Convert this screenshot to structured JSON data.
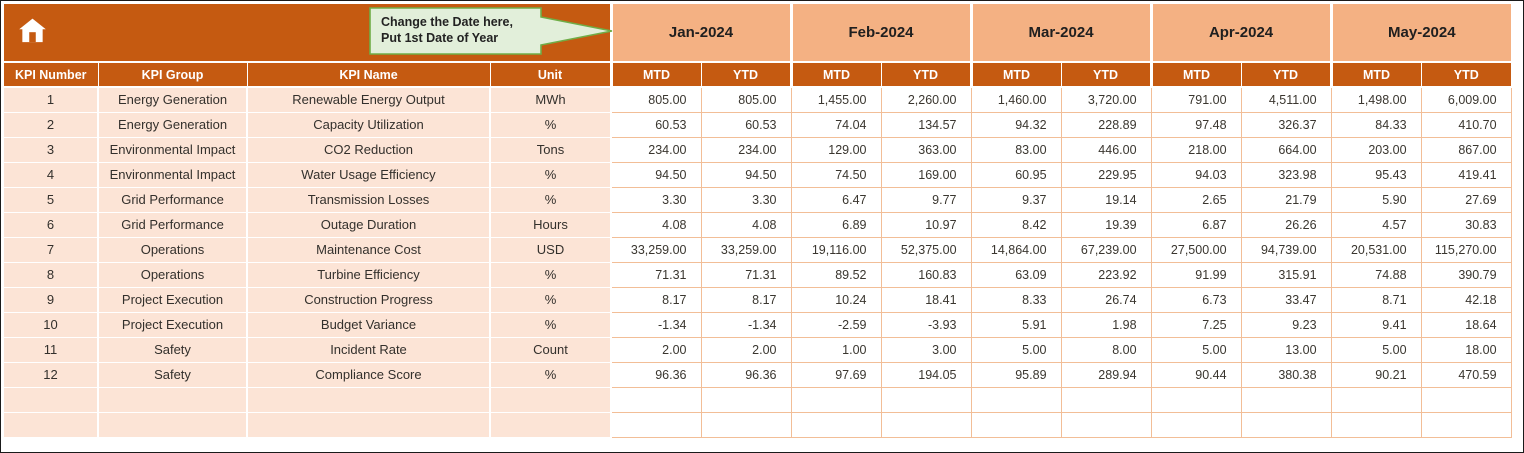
{
  "colors": {
    "header_fill": "#C55A11",
    "month_band_fill": "#F4B183",
    "left_block_fill": "#FCE4D6",
    "gridline": "#F2BE97",
    "callout_fill": "#E2EFDA",
    "callout_border": "#70AD47",
    "header_text": "#FFFFFF"
  },
  "callout": {
    "line1": "Change the Date here,",
    "line2": "Put 1st Date of Year"
  },
  "months": [
    "Jan-2024",
    "Feb-2024",
    "Mar-2024",
    "Apr-2024",
    "May-2024"
  ],
  "subheaders": {
    "mtd": "MTD",
    "ytd": "YTD"
  },
  "columns": [
    "KPI Number",
    "KPI Group",
    "KPI Name",
    "Unit"
  ],
  "rows": [
    {
      "num": "1",
      "group": "Energy Generation",
      "name": "Renewable Energy Output",
      "unit": "MWh",
      "values": [
        "805.00",
        "805.00",
        "1,455.00",
        "2,260.00",
        "1,460.00",
        "3,720.00",
        "791.00",
        "4,511.00",
        "1,498.00",
        "6,009.00"
      ]
    },
    {
      "num": "2",
      "group": "Energy Generation",
      "name": "Capacity Utilization",
      "unit": "%",
      "values": [
        "60.53",
        "60.53",
        "74.04",
        "134.57",
        "94.32",
        "228.89",
        "97.48",
        "326.37",
        "84.33",
        "410.70"
      ]
    },
    {
      "num": "3",
      "group": "Environmental Impact",
      "name": "CO2 Reduction",
      "unit": "Tons",
      "values": [
        "234.00",
        "234.00",
        "129.00",
        "363.00",
        "83.00",
        "446.00",
        "218.00",
        "664.00",
        "203.00",
        "867.00"
      ]
    },
    {
      "num": "4",
      "group": "Environmental Impact",
      "name": "Water Usage Efficiency",
      "unit": "%",
      "values": [
        "94.50",
        "94.50",
        "74.50",
        "169.00",
        "60.95",
        "229.95",
        "94.03",
        "323.98",
        "95.43",
        "419.41"
      ]
    },
    {
      "num": "5",
      "group": "Grid Performance",
      "name": "Transmission Losses",
      "unit": "%",
      "values": [
        "3.30",
        "3.30",
        "6.47",
        "9.77",
        "9.37",
        "19.14",
        "2.65",
        "21.79",
        "5.90",
        "27.69"
      ]
    },
    {
      "num": "6",
      "group": "Grid Performance",
      "name": "Outage Duration",
      "unit": "Hours",
      "values": [
        "4.08",
        "4.08",
        "6.89",
        "10.97",
        "8.42",
        "19.39",
        "6.87",
        "26.26",
        "4.57",
        "30.83"
      ]
    },
    {
      "num": "7",
      "group": "Operations",
      "name": "Maintenance Cost",
      "unit": "USD",
      "values": [
        "33,259.00",
        "33,259.00",
        "19,116.00",
        "52,375.00",
        "14,864.00",
        "67,239.00",
        "27,500.00",
        "94,739.00",
        "20,531.00",
        "115,270.00"
      ]
    },
    {
      "num": "8",
      "group": "Operations",
      "name": "Turbine Efficiency",
      "unit": "%",
      "values": [
        "71.31",
        "71.31",
        "89.52",
        "160.83",
        "63.09",
        "223.92",
        "91.99",
        "315.91",
        "74.88",
        "390.79"
      ]
    },
    {
      "num": "9",
      "group": "Project Execution",
      "name": "Construction Progress",
      "unit": "%",
      "values": [
        "8.17",
        "8.17",
        "10.24",
        "18.41",
        "8.33",
        "26.74",
        "6.73",
        "33.47",
        "8.71",
        "42.18"
      ]
    },
    {
      "num": "10",
      "group": "Project Execution",
      "name": "Budget Variance",
      "unit": "%",
      "values": [
        "-1.34",
        "-1.34",
        "-2.59",
        "-3.93",
        "5.91",
        "1.98",
        "7.25",
        "9.23",
        "9.41",
        "18.64"
      ]
    },
    {
      "num": "11",
      "group": "Safety",
      "name": "Incident Rate",
      "unit": "Count",
      "values": [
        "2.00",
        "2.00",
        "1.00",
        "3.00",
        "5.00",
        "8.00",
        "5.00",
        "13.00",
        "5.00",
        "18.00"
      ]
    },
    {
      "num": "12",
      "group": "Safety",
      "name": "Compliance Score",
      "unit": "%",
      "values": [
        "96.36",
        "96.36",
        "97.69",
        "194.05",
        "95.89",
        "289.94",
        "90.44",
        "380.38",
        "90.21",
        "470.59"
      ]
    }
  ],
  "empty_rows": 2
}
